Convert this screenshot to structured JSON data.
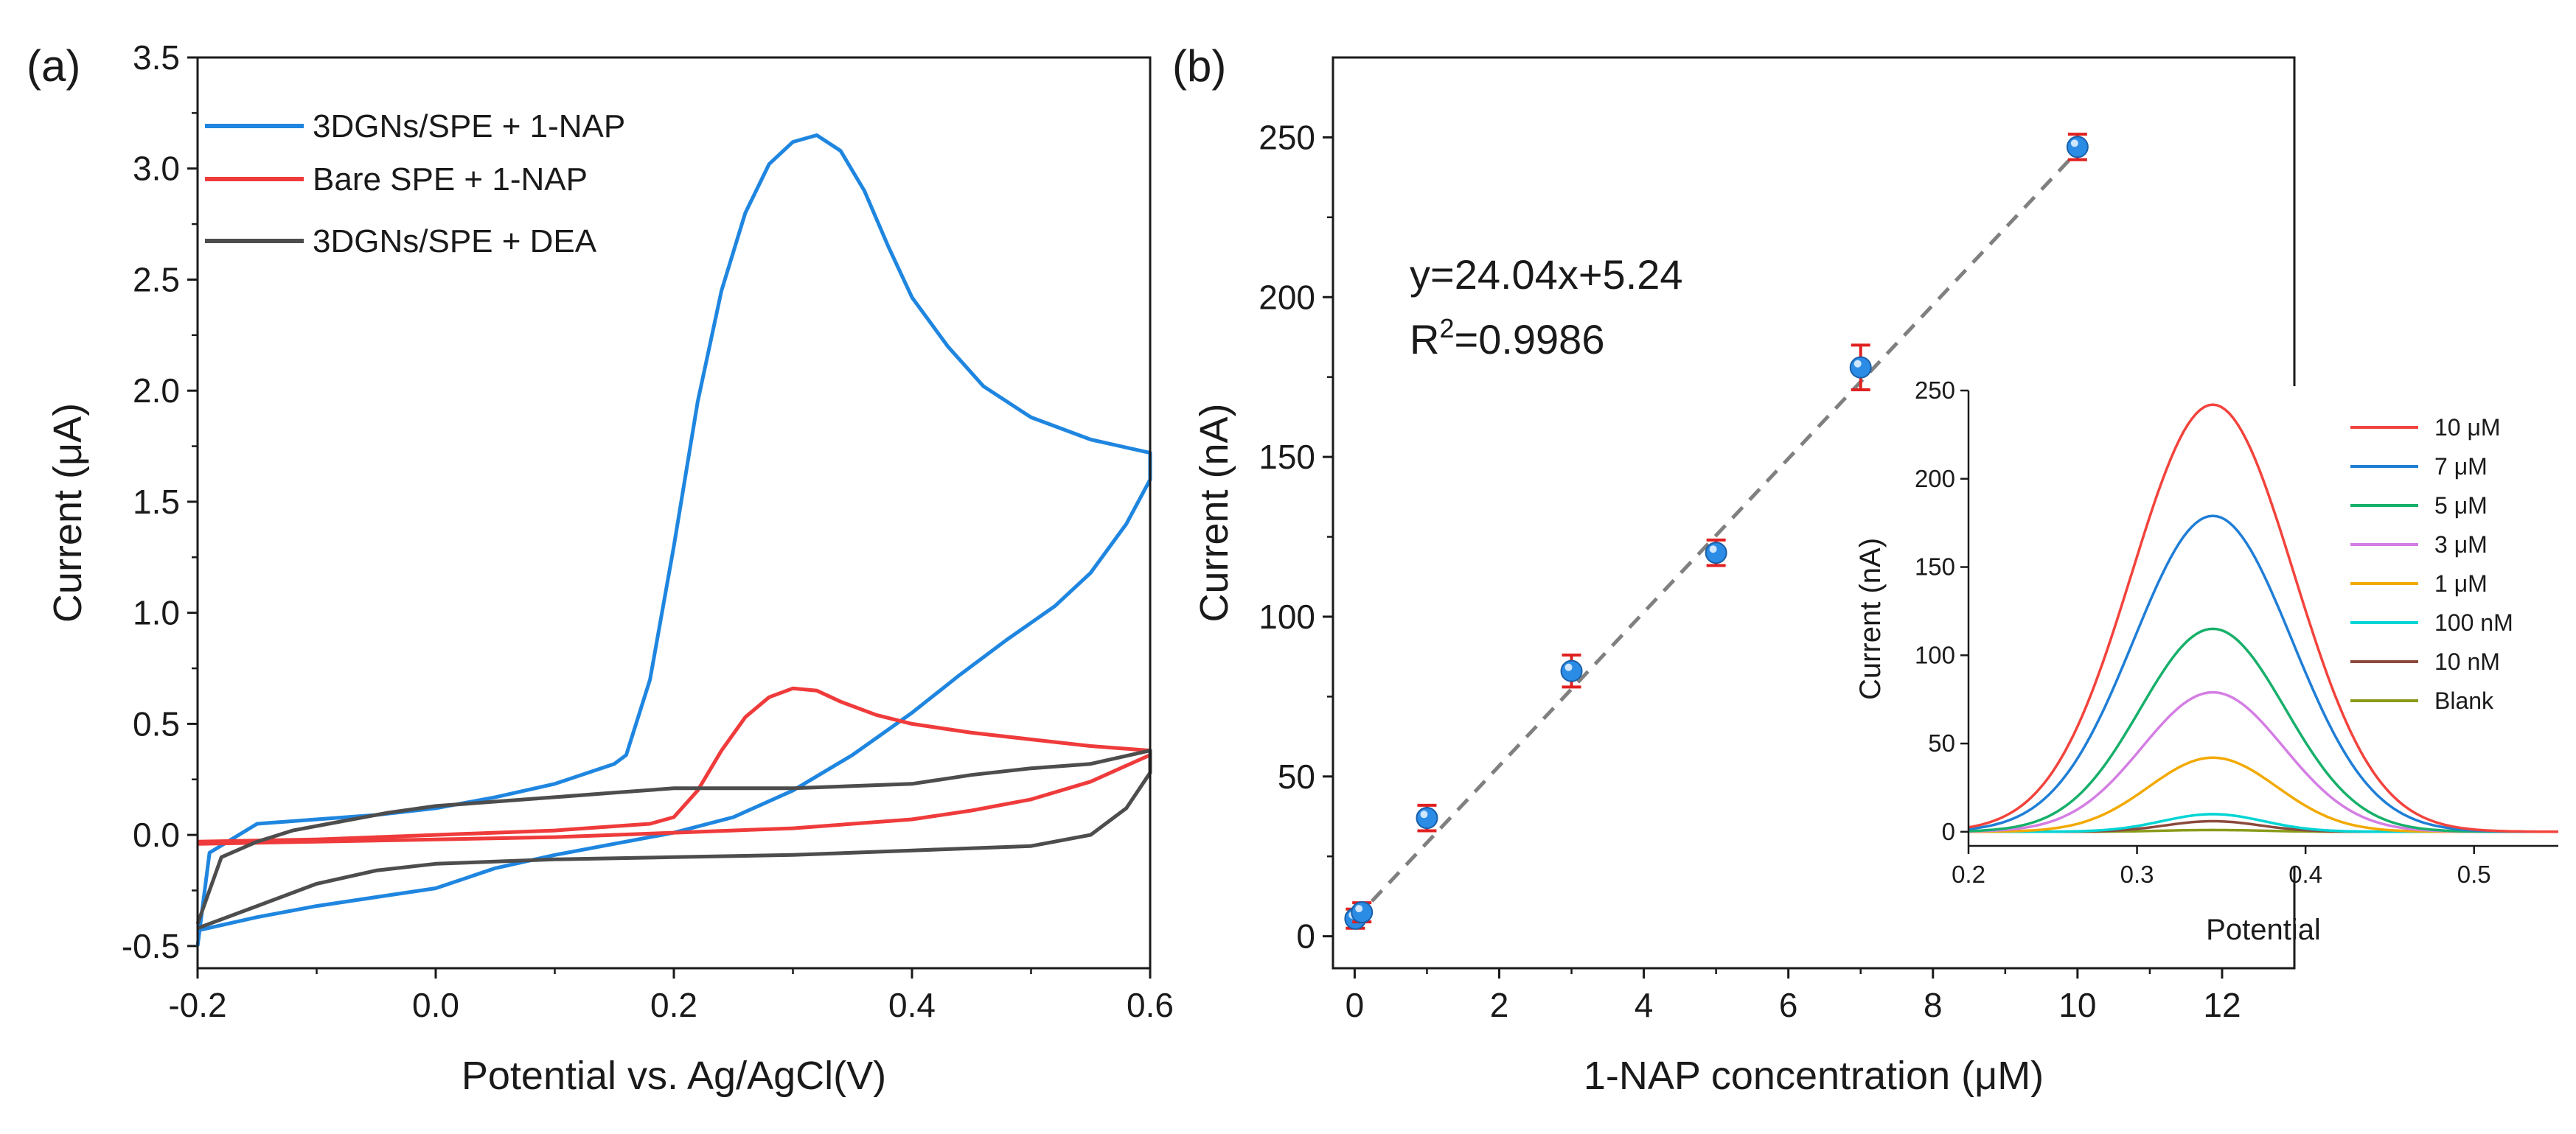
{
  "chart_data": [
    {
      "type": "line",
      "panel_label": "(a)",
      "title": "",
      "xlabel": "Potential vs. Ag/AgCl(V)",
      "ylabel": "Current (μA)",
      "xlim": [
        -0.2,
        0.6
      ],
      "ylim": [
        -0.6,
        3.5
      ],
      "xticks": [
        -0.2,
        0.0,
        0.2,
        0.4,
        0.6
      ],
      "xtick_labels": [
        "-0.2",
        "0.0",
        "0.2",
        "0.4",
        "0.6"
      ],
      "yticks": [
        -0.5,
        0.0,
        0.5,
        1.0,
        1.5,
        2.0,
        2.5,
        3.0,
        3.5
      ],
      "ytick_labels": [
        "-0.5",
        "0.0",
        "0.5",
        "1.0",
        "1.5",
        "2.0",
        "2.5",
        "3.0",
        "3.5"
      ],
      "legend_position": "top-left",
      "series": [
        {
          "name": "3DGNs/SPE + 1-NAP",
          "color": "#1f86e0",
          "points": [
            [
              -0.2,
              -0.5
            ],
            [
              -0.19,
              -0.08
            ],
            [
              -0.15,
              0.05
            ],
            [
              -0.1,
              0.07
            ],
            [
              -0.05,
              0.09
            ],
            [
              0.0,
              0.12
            ],
            [
              0.05,
              0.17
            ],
            [
              0.1,
              0.23
            ],
            [
              0.15,
              0.32
            ],
            [
              0.16,
              0.36
            ],
            [
              0.18,
              0.7
            ],
            [
              0.2,
              1.3
            ],
            [
              0.22,
              1.95
            ],
            [
              0.24,
              2.45
            ],
            [
              0.26,
              2.8
            ],
            [
              0.28,
              3.02
            ],
            [
              0.3,
              3.12
            ],
            [
              0.32,
              3.15
            ],
            [
              0.34,
              3.08
            ],
            [
              0.36,
              2.9
            ],
            [
              0.38,
              2.65
            ],
            [
              0.4,
              2.42
            ],
            [
              0.43,
              2.2
            ],
            [
              0.46,
              2.02
            ],
            [
              0.5,
              1.88
            ],
            [
              0.55,
              1.78
            ],
            [
              0.6,
              1.72
            ],
            [
              0.6,
              1.6
            ],
            [
              0.58,
              1.4
            ],
            [
              0.55,
              1.18
            ],
            [
              0.52,
              1.03
            ],
            [
              0.48,
              0.88
            ],
            [
              0.44,
              0.72
            ],
            [
              0.4,
              0.55
            ],
            [
              0.35,
              0.36
            ],
            [
              0.3,
              0.2
            ],
            [
              0.25,
              0.08
            ],
            [
              0.2,
              0.01
            ],
            [
              0.15,
              -0.04
            ],
            [
              0.1,
              -0.09
            ],
            [
              0.05,
              -0.15
            ],
            [
              0.0,
              -0.24
            ],
            [
              -0.05,
              -0.28
            ],
            [
              -0.1,
              -0.32
            ],
            [
              -0.15,
              -0.37
            ],
            [
              -0.2,
              -0.43
            ]
          ]
        },
        {
          "name": "Bare SPE + 1-NAP",
          "color": "#ef3b3b",
          "points": [
            [
              -0.2,
              -0.03
            ],
            [
              -0.1,
              -0.02
            ],
            [
              0.0,
              0.0
            ],
            [
              0.1,
              0.02
            ],
            [
              0.18,
              0.05
            ],
            [
              0.2,
              0.08
            ],
            [
              0.22,
              0.2
            ],
            [
              0.24,
              0.38
            ],
            [
              0.26,
              0.53
            ],
            [
              0.28,
              0.62
            ],
            [
              0.3,
              0.66
            ],
            [
              0.32,
              0.65
            ],
            [
              0.34,
              0.6
            ],
            [
              0.37,
              0.54
            ],
            [
              0.4,
              0.5
            ],
            [
              0.45,
              0.46
            ],
            [
              0.5,
              0.43
            ],
            [
              0.55,
              0.4
            ],
            [
              0.6,
              0.38
            ],
            [
              0.6,
              0.36
            ],
            [
              0.55,
              0.24
            ],
            [
              0.5,
              0.16
            ],
            [
              0.45,
              0.11
            ],
            [
              0.4,
              0.07
            ],
            [
              0.3,
              0.03
            ],
            [
              0.2,
              0.01
            ],
            [
              0.1,
              -0.01
            ],
            [
              0.0,
              -0.02
            ],
            [
              -0.1,
              -0.03
            ],
            [
              -0.2,
              -0.04
            ]
          ]
        },
        {
          "name": "3DGNs/SPE + DEA",
          "color": "#4d4d4d",
          "points": [
            [
              -0.2,
              -0.4
            ],
            [
              -0.18,
              -0.1
            ],
            [
              -0.15,
              -0.03
            ],
            [
              -0.12,
              0.02
            ],
            [
              -0.08,
              0.06
            ],
            [
              -0.04,
              0.1
            ],
            [
              0.0,
              0.13
            ],
            [
              0.05,
              0.15
            ],
            [
              0.1,
              0.17
            ],
            [
              0.15,
              0.19
            ],
            [
              0.2,
              0.21
            ],
            [
              0.25,
              0.21
            ],
            [
              0.3,
              0.21
            ],
            [
              0.35,
              0.22
            ],
            [
              0.4,
              0.23
            ],
            [
              0.45,
              0.27
            ],
            [
              0.5,
              0.3
            ],
            [
              0.55,
              0.32
            ],
            [
              0.6,
              0.38
            ],
            [
              0.6,
              0.28
            ],
            [
              0.58,
              0.12
            ],
            [
              0.55,
              0.0
            ],
            [
              0.5,
              -0.05
            ],
            [
              0.4,
              -0.07
            ],
            [
              0.3,
              -0.09
            ],
            [
              0.2,
              -0.1
            ],
            [
              0.1,
              -0.11
            ],
            [
              0.0,
              -0.13
            ],
            [
              -0.05,
              -0.16
            ],
            [
              -0.1,
              -0.22
            ],
            [
              -0.15,
              -0.32
            ],
            [
              -0.2,
              -0.42
            ]
          ]
        }
      ]
    },
    {
      "type": "scatter",
      "panel_label": "(b)",
      "title": "",
      "xlabel": "1-NAP concentration (μM)",
      "ylabel": "Current (nA)",
      "xlim": [
        -0.3,
        13
      ],
      "ylim": [
        -10,
        275
      ],
      "xticks": [
        0,
        2,
        4,
        6,
        8,
        10,
        12
      ],
      "xtick_labels": [
        "0",
        "2",
        "4",
        "6",
        "8",
        "10",
        "12"
      ],
      "yticks": [
        0,
        50,
        100,
        150,
        200,
        250
      ],
      "ytick_labels": [
        "0",
        "50",
        "100",
        "150",
        "200",
        "250"
      ],
      "equation": "y=24.04x+5.24",
      "r2_prefix": "R",
      "r2_sup": "2",
      "r2_value": "=0.9986",
      "fit": {
        "slope": 24.04,
        "intercept": 5.24,
        "x_range": [
          0,
          10
        ],
        "color": "#808080"
      },
      "marker_color": "#2b8ce6",
      "error_color": "#e02020",
      "points": [
        {
          "x": 0.01,
          "y": 5.5,
          "err": 3
        },
        {
          "x": 0.1,
          "y": 7.5,
          "err": 3
        },
        {
          "x": 1,
          "y": 37,
          "err": 4
        },
        {
          "x": 3,
          "y": 83,
          "err": 5
        },
        {
          "x": 5,
          "y": 120,
          "err": 4
        },
        {
          "x": 7,
          "y": 178,
          "err": 7
        },
        {
          "x": 10,
          "y": 247,
          "err": 4
        }
      ]
    },
    {
      "type": "line",
      "panel_label": "",
      "title": "",
      "xlabel": "Potential",
      "ylabel": "Current (nA)",
      "xlim": [
        0.2,
        0.55
      ],
      "ylim": [
        -8,
        250
      ],
      "xticks": [
        0.2,
        0.3,
        0.4,
        0.5
      ],
      "xtick_labels": [
        "0.2",
        "0.3",
        "0.4",
        "0.5"
      ],
      "yticks": [
        0,
        50,
        100,
        150,
        200,
        250
      ],
      "ytick_labels": [
        "0",
        "50",
        "100",
        "150",
        "200",
        "250"
      ],
      "peak_center": 0.345,
      "legend_position": "right",
      "series": [
        {
          "name": "10 μM",
          "color": "#f2433c",
          "peak": 242,
          "width": 0.048
        },
        {
          "name": "7 μM",
          "color": "#1f7ed6",
          "peak": 179,
          "width": 0.047
        },
        {
          "name": "5 μM",
          "color": "#17b06a",
          "peak": 115,
          "width": 0.043
        },
        {
          "name": "3 μM",
          "color": "#d47ee3",
          "peak": 79,
          "width": 0.042
        },
        {
          "name": "1 μM",
          "color": "#f2a900",
          "peak": 42,
          "width": 0.038
        },
        {
          "name": "100 nM",
          "color": "#00d4d4",
          "peak": 10,
          "width": 0.03
        },
        {
          "name": "10 nM",
          "color": "#8b4a3c",
          "peak": 6,
          "width": 0.028
        },
        {
          "name": "Blank",
          "color": "#8a9b1a",
          "peak": 1,
          "width": 0.03
        }
      ]
    }
  ]
}
